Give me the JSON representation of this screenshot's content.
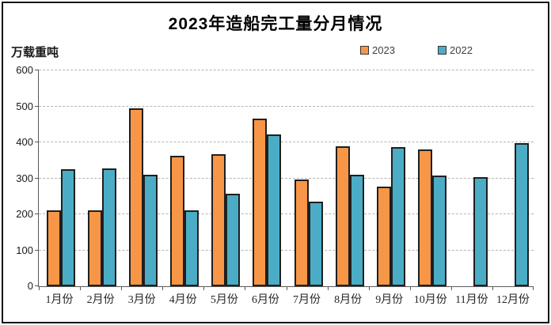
{
  "title": "2023年造船完工量分月情况",
  "y_axis": {
    "unit_label": "万载重吨",
    "ticks": [
      0,
      100,
      200,
      300,
      400,
      500,
      600
    ]
  },
  "legend": {
    "items": [
      {
        "label": "2023",
        "color": "#F79646"
      },
      {
        "label": "2022",
        "color": "#4BACC6"
      }
    ]
  },
  "chart_data": {
    "type": "bar",
    "title": "2023年造船完工量分月情况",
    "categories": [
      "1月份",
      "2月份",
      "3月份",
      "4月份",
      "5月份",
      "6月份",
      "7月份",
      "8月份",
      "9月份",
      "10月份",
      "11月份",
      "12月份"
    ],
    "series": [
      {
        "name": "2023",
        "color": "#F79646",
        "values": [
          211,
          212,
          495,
          363,
          367,
          465,
          296,
          389,
          276,
          381,
          null,
          null
        ]
      },
      {
        "name": "2022",
        "color": "#4BACC6",
        "values": [
          326,
          328,
          309,
          211,
          257,
          422,
          235,
          310,
          386,
          308,
          303,
          397
        ]
      }
    ],
    "xlabel": "",
    "ylabel": "万载重吨",
    "ylim": [
      0,
      600
    ],
    "ytick_step": 100,
    "grid": "horizontal-dashed",
    "legend_position": "top-right",
    "bar_border_color": "#1f1f1f"
  }
}
